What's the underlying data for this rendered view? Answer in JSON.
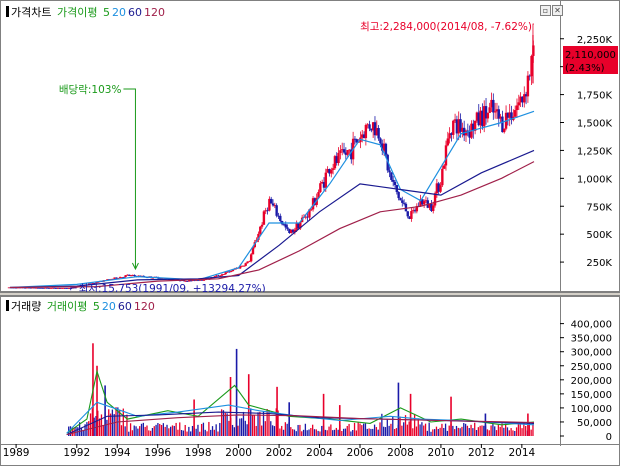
{
  "colors": {
    "up": "#e8002a",
    "down": "#1a1aa8",
    "ma5": "#1a9a1a",
    "ma20": "#1e90e0",
    "ma60": "#1a1a90",
    "ma120": "#a0204a",
    "price_box": "#e8002a"
  },
  "price_legend": {
    "chart_label": "가격차트",
    "ma_label": "가격이평",
    "periods": [
      "5",
      "20",
      "60",
      "120"
    ]
  },
  "volume_legend": {
    "chart_label": "거래량",
    "ma_label": "거래이평",
    "periods": [
      "5",
      "20",
      "60",
      "120"
    ]
  },
  "annotations": {
    "high": "최고:2,284,000(2014/08, -7.62%)",
    "low": "최저:15,753(1991/09, +13294.27%)",
    "dividend": "배당락:103%",
    "current_price": "2,110,000",
    "current_change": "(2.43%)"
  },
  "chart_data": [
    {
      "type": "line",
      "panel": "price",
      "ylim": [
        0,
        2400000
      ],
      "yticks": [
        {
          "v": 2250000,
          "label": "2,250K"
        },
        {
          "v": 2000000,
          "label": "2,000K"
        },
        {
          "v": 1750000,
          "label": "1,750K"
        },
        {
          "v": 1500000,
          "label": "1,500K"
        },
        {
          "v": 1250000,
          "label": "1,250K"
        },
        {
          "v": 1000000,
          "label": "1,000K"
        },
        {
          "v": 750000,
          "label": "750K"
        },
        {
          "v": 500000,
          "label": "500K"
        },
        {
          "v": 250000,
          "label": "250K"
        }
      ],
      "xlim": [
        1988.6,
        2014.7
      ],
      "xticks": [
        "1989",
        "1992",
        "1994",
        "1996",
        "1998",
        "2000",
        "2002",
        "2004",
        "2006",
        "2008",
        "2010",
        "2012",
        "2014"
      ],
      "xtick_years": [
        1989,
        1992,
        1994,
        1996,
        1998,
        2000,
        2002,
        2004,
        2006,
        2008,
        2010,
        2012,
        2014
      ],
      "price_points": [
        [
          1988.7,
          22000
        ],
        [
          1991.7,
          15753
        ],
        [
          1993.0,
          70000
        ],
        [
          1994.5,
          130000
        ],
        [
          1996.0,
          110000
        ],
        [
          1997.5,
          80000
        ],
        [
          1998.5,
          100000
        ],
        [
          1999.5,
          160000
        ],
        [
          2000.5,
          250000
        ],
        [
          2001.5,
          800000
        ],
        [
          2002.5,
          500000
        ],
        [
          2003.5,
          700000
        ],
        [
          2004.5,
          1100000
        ],
        [
          2005.5,
          1250000
        ],
        [
          2006.5,
          1500000
        ],
        [
          2007.0,
          1400000
        ],
        [
          2007.5,
          1000000
        ],
        [
          2008.0,
          800000
        ],
        [
          2008.5,
          650000
        ],
        [
          2009.0,
          800000
        ],
        [
          2009.5,
          750000
        ],
        [
          2010.0,
          1000000
        ],
        [
          2010.5,
          1500000
        ],
        [
          2011.0,
          1450000
        ],
        [
          2011.5,
          1450000
        ],
        [
          2012.0,
          1550000
        ],
        [
          2012.5,
          1600000
        ],
        [
          2013.0,
          1500000
        ],
        [
          2013.5,
          1600000
        ],
        [
          2014.0,
          1700000
        ],
        [
          2014.3,
          1900000
        ],
        [
          2014.6,
          2110000
        ]
      ],
      "high": {
        "date": "2014/08",
        "value": 2284000
      },
      "low": {
        "date": "1991/09",
        "value": 15753
      },
      "ma_series": [
        {
          "name": "20",
          "points": [
            [
              1988.7,
              22000
            ],
            [
              1992,
              50000
            ],
            [
              1995,
              120000
            ],
            [
              1998,
              90000
            ],
            [
              2000,
              200000
            ],
            [
              2001.5,
              600000
            ],
            [
              2003,
              600000
            ],
            [
              2004.5,
              950000
            ],
            [
              2006,
              1350000
            ],
            [
              2007,
              1300000
            ],
            [
              2008,
              900000
            ],
            [
              2009,
              800000
            ],
            [
              2010,
              1100000
            ],
            [
              2011,
              1400000
            ],
            [
              2012,
              1450000
            ],
            [
              2013,
              1500000
            ],
            [
              2014.6,
              1600000
            ]
          ]
        },
        {
          "name": "60",
          "points": [
            [
              1988.7,
              22000
            ],
            [
              1992,
              35000
            ],
            [
              1995,
              90000
            ],
            [
              1998,
              100000
            ],
            [
              2000,
              130000
            ],
            [
              2002,
              400000
            ],
            [
              2004,
              700000
            ],
            [
              2006,
              950000
            ],
            [
              2008,
              900000
            ],
            [
              2010,
              850000
            ],
            [
              2012,
              1050000
            ],
            [
              2014.6,
              1250000
            ]
          ]
        },
        {
          "name": "120",
          "points": [
            [
              1988.7,
              22000
            ],
            [
              1993,
              30000
            ],
            [
              1996,
              80000
            ],
            [
              1999,
              100000
            ],
            [
              2001,
              180000
            ],
            [
              2003,
              350000
            ],
            [
              2005,
              550000
            ],
            [
              2007,
              700000
            ],
            [
              2009,
              750000
            ],
            [
              2011,
              850000
            ],
            [
              2013,
              1000000
            ],
            [
              2014.6,
              1150000
            ]
          ]
        }
      ]
    },
    {
      "type": "bar",
      "panel": "volume",
      "ylim": [
        0,
        420000
      ],
      "yticks": [
        {
          "v": 400000,
          "label": "400,000"
        },
        {
          "v": 350000,
          "label": "350,000"
        },
        {
          "v": 300000,
          "label": "300,000"
        },
        {
          "v": 250000,
          "label": "250,000"
        },
        {
          "v": 200000,
          "label": "200,000"
        },
        {
          "v": 150000,
          "label": "150,000"
        },
        {
          "v": 100000,
          "label": "100,000"
        },
        {
          "v": 50000,
          "label": "50,000"
        },
        {
          "v": 0,
          "label": "0"
        }
      ],
      "peaks": [
        [
          1992.8,
          330000
        ],
        [
          1993.0,
          250000
        ],
        [
          1993.4,
          180000
        ],
        [
          1997.8,
          130000
        ],
        [
          1999.6,
          210000
        ],
        [
          1999.9,
          310000
        ],
        [
          2000.5,
          220000
        ],
        [
          2001.9,
          175000
        ],
        [
          2002.5,
          120000
        ],
        [
          2004.2,
          150000
        ],
        [
          2005.0,
          110000
        ],
        [
          2007.9,
          190000
        ],
        [
          2008.5,
          150000
        ],
        [
          2010.5,
          140000
        ],
        [
          2012.2,
          80000
        ],
        [
          2014.3,
          80000
        ]
      ],
      "ma_series": [
        {
          "name": "5",
          "points": [
            [
              1991.5,
              10000
            ],
            [
              1992.5,
              60000
            ],
            [
              1993.0,
              230000
            ],
            [
              1993.5,
              120000
            ],
            [
              1994.5,
              60000
            ],
            [
              1996.5,
              90000
            ],
            [
              1998.0,
              70000
            ],
            [
              1999.8,
              180000
            ],
            [
              2000.5,
              110000
            ],
            [
              2002.5,
              70000
            ],
            [
              2004.5,
              60000
            ],
            [
              2006.5,
              45000
            ],
            [
              2008.0,
              100000
            ],
            [
              2009.5,
              50000
            ],
            [
              2011.0,
              60000
            ],
            [
              2013.0,
              40000
            ],
            [
              2014.6,
              50000
            ]
          ]
        },
        {
          "name": "20",
          "points": [
            [
              1991.5,
              10000
            ],
            [
              1993.0,
              120000
            ],
            [
              1995.0,
              70000
            ],
            [
              1997.0,
              85000
            ],
            [
              1999.5,
              110000
            ],
            [
              2001.0,
              90000
            ],
            [
              2003.0,
              70000
            ],
            [
              2005.0,
              55000
            ],
            [
              2007.5,
              70000
            ],
            [
              2009.0,
              60000
            ],
            [
              2011.0,
              55000
            ],
            [
              2014.6,
              40000
            ]
          ]
        },
        {
          "name": "60",
          "points": [
            [
              1991.5,
              5000
            ],
            [
              1993.5,
              70000
            ],
            [
              1996.0,
              75000
            ],
            [
              1999.0,
              85000
            ],
            [
              2001.5,
              80000
            ],
            [
              2004.0,
              65000
            ],
            [
              2007.0,
              60000
            ],
            [
              2010.0,
              55000
            ],
            [
              2014.6,
              45000
            ]
          ]
        },
        {
          "name": "120",
          "points": [
            [
              1991.5,
              5000
            ],
            [
              1994.0,
              50000
            ],
            [
              1997.0,
              65000
            ],
            [
              2000.0,
              75000
            ],
            [
              2003.0,
              72000
            ],
            [
              2006.0,
              62000
            ],
            [
              2010.0,
              55000
            ],
            [
              2014.6,
              48000
            ]
          ]
        }
      ]
    }
  ]
}
